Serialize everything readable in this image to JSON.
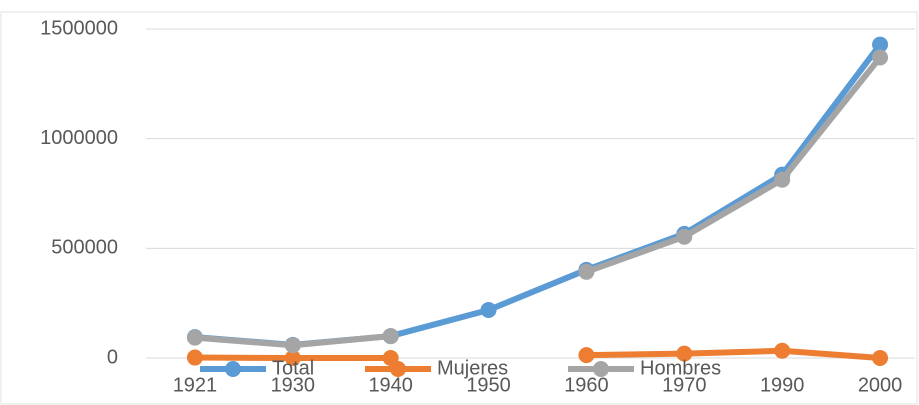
{
  "chart_data": {
    "type": "line",
    "categories": [
      "1921",
      "1930",
      "1940",
      "1950",
      "1960",
      "1970",
      "1990",
      "2000"
    ],
    "series": [
      {
        "name": "Total",
        "color": "#5b9bd5",
        "values": [
          95000,
          60000,
          100000,
          219000,
          402000,
          566000,
          836000,
          1429000
        ]
      },
      {
        "name": "Mujeres",
        "color": "#ed7d31",
        "values": [
          2000,
          0,
          0,
          null,
          13000,
          20000,
          33000,
          0
        ]
      },
      {
        "name": "Hombres",
        "color": "#a5a5a5",
        "values": [
          93000,
          58000,
          100000,
          null,
          393000,
          553000,
          813000,
          1370000
        ]
      }
    ],
    "ylim": [
      0,
      1500000
    ],
    "yticks": [
      0,
      500000,
      1000000,
      1500000
    ],
    "grid": true,
    "legend": "bottom"
  }
}
